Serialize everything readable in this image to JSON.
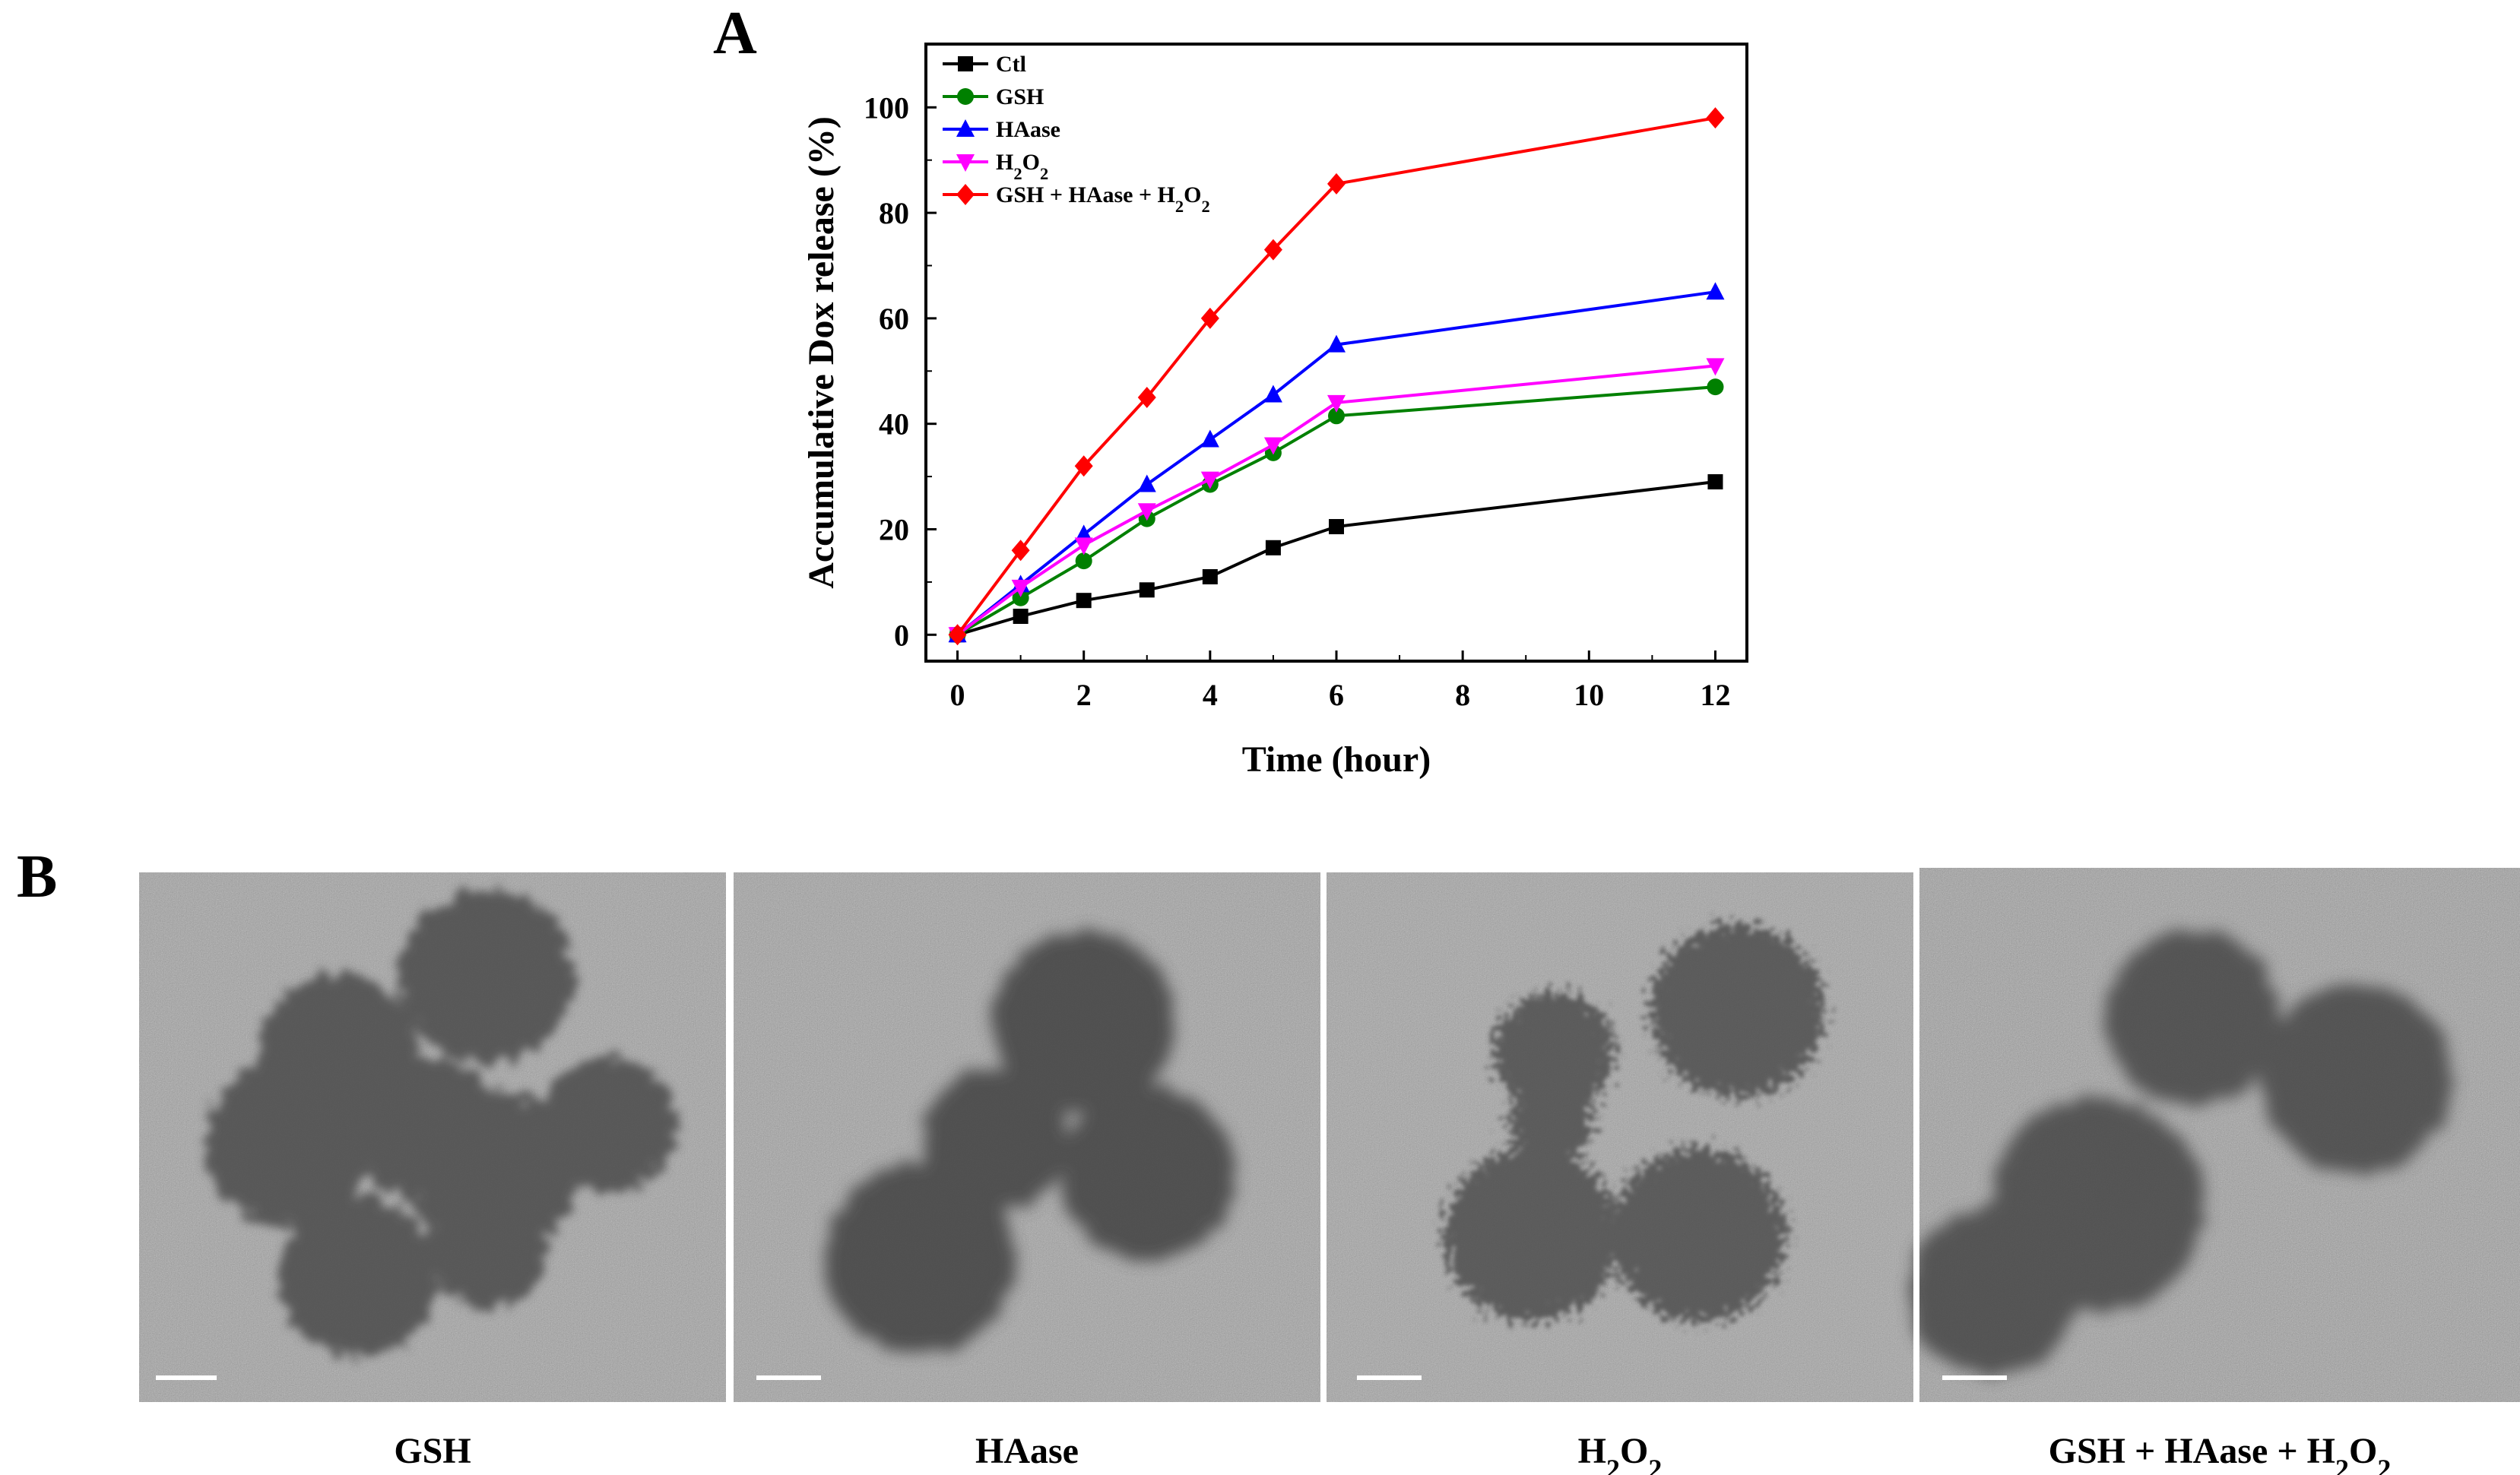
{
  "panels": {
    "a_label": "A",
    "b_label": "B"
  },
  "chart_data": {
    "type": "line",
    "title": "",
    "xlabel": "Time (hour)",
    "ylabel": "Accumulative Dox release (%)",
    "xlim": [
      -0.5,
      12.5
    ],
    "ylim": [
      -5,
      112
    ],
    "xticks": [
      0,
      2,
      4,
      6,
      8,
      10,
      12
    ],
    "yticks": [
      0,
      20,
      40,
      60,
      80,
      100
    ],
    "grid": false,
    "legend_position": "top-left",
    "x": [
      0,
      1,
      2,
      3,
      4,
      5,
      6,
      12
    ],
    "series": [
      {
        "name": "Ctl",
        "name_parts": [
          "Ctl"
        ],
        "color": "#000000",
        "marker": "square",
        "values": [
          0,
          3.5,
          6.5,
          8.5,
          11,
          16.5,
          20.5,
          29
        ]
      },
      {
        "name": "GSH",
        "name_parts": [
          "GSH"
        ],
        "color": "#008000",
        "marker": "circle",
        "values": [
          0,
          7,
          14,
          22,
          28.5,
          34.5,
          41.5,
          47
        ]
      },
      {
        "name": "HAase",
        "name_parts": [
          "HAase"
        ],
        "color": "#0000FF",
        "marker": "triangle-up",
        "values": [
          0,
          9.5,
          19,
          28.5,
          37,
          45.5,
          55,
          65
        ]
      },
      {
        "name": "H2O2",
        "name_parts": [
          "H",
          "2",
          "O",
          "2"
        ],
        "color": "#FF00FF",
        "marker": "triangle-down",
        "values": [
          0,
          9,
          17,
          23.5,
          29.5,
          36,
          44,
          51
        ]
      },
      {
        "name": "GSH + HAase + H2O2",
        "name_parts": [
          "GSH + HAase + H",
          "2",
          "O",
          "2"
        ],
        "color": "#FF0000",
        "marker": "diamond",
        "values": [
          0,
          16,
          32,
          45,
          60,
          73,
          85.5,
          98
        ]
      }
    ]
  },
  "tem_images": [
    {
      "caption": "GSH",
      "caption_parts": [
        "GSH"
      ]
    },
    {
      "caption": "HAase",
      "caption_parts": [
        "HAase"
      ]
    },
    {
      "caption": "H2O2",
      "caption_parts": [
        "H",
        "2",
        "O",
        "2"
      ]
    },
    {
      "caption": "GSH + HAase + H2O2",
      "caption_parts": [
        "GSH + HAase + H",
        "2",
        "O",
        "2"
      ]
    }
  ]
}
